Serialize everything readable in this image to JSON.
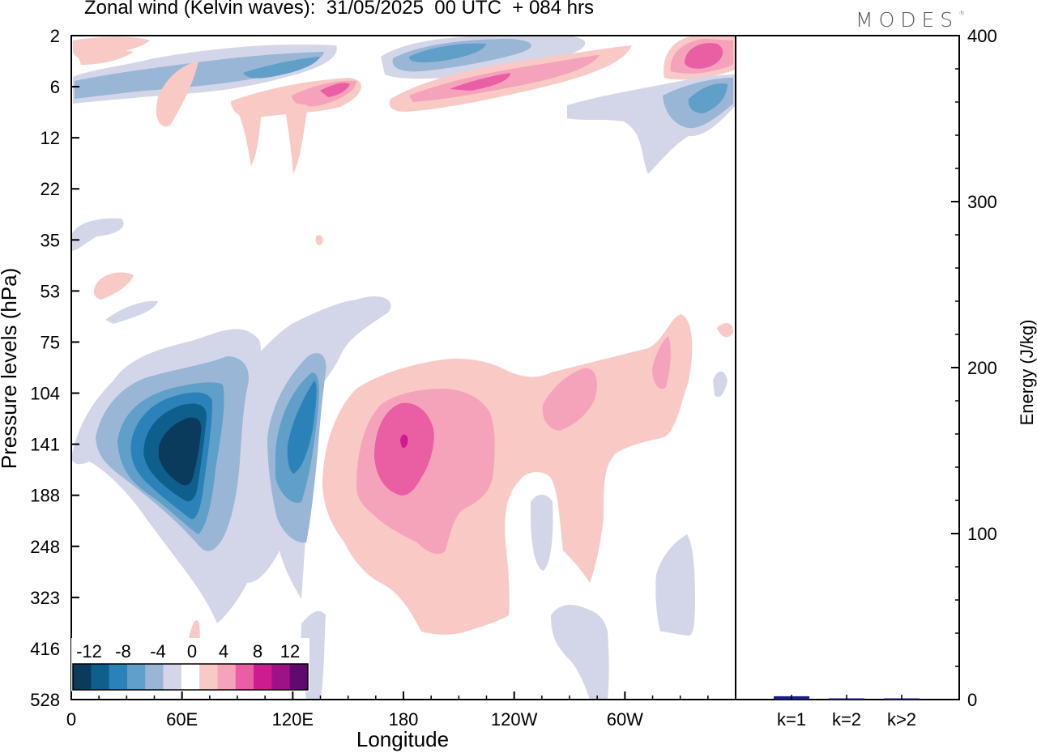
{
  "header": {
    "title": "Zonal wind (Kelvin waves):  31/05/2025  00 UTC  + 084 hrs",
    "brand": "MODES",
    "brand_mark": "®"
  },
  "colors": {
    "negative": [
      "#0b3b5c",
      "#0f5f8c",
      "#2a82b9",
      "#5f9fc8",
      "#9ab6d6",
      "#d3d6e8"
    ],
    "positive": [
      "#f9c9c5",
      "#f5a2bb",
      "#ea5ea4",
      "#cc1c8f",
      "#9e1288",
      "#5e0a6e"
    ],
    "energy_bar": "#1c1c86"
  },
  "chart_data": [
    {
      "type": "heatmap",
      "title": "Zonal wind (Kelvin waves):  31/05/2025  00 UTC  + 084 hrs",
      "xlabel": "Longitude",
      "ylabel": "Pressure levels (hPa)",
      "x_ticks": [
        "0",
        "60E",
        "120E",
        "180",
        "120W",
        "60W"
      ],
      "x_tick_values": [
        0,
        60,
        120,
        180,
        240,
        300
      ],
      "xlim": [
        0,
        360
      ],
      "y_ticks": [
        "2",
        "6",
        "12",
        "22",
        "35",
        "53",
        "75",
        "104",
        "141",
        "188",
        "248",
        "323",
        "416",
        "528"
      ],
      "y_scale": "pressure levels (top = 2 hPa, bottom = 528 hPa)",
      "colorbar": {
        "labels": [
          "-12",
          "-8",
          "-4",
          "0",
          "4",
          "8",
          "12"
        ],
        "levels": [
          -14,
          -12,
          -10,
          -8,
          -6,
          -4,
          -2,
          2,
          4,
          6,
          8,
          10,
          12,
          14
        ]
      },
      "features": [
        {
          "sign": "negative",
          "lon": 55,
          "level": "141",
          "peak": -14
        },
        {
          "sign": "negative",
          "lon": 117,
          "level": "141",
          "peak": -9
        },
        {
          "sign": "positive",
          "lon": 180,
          "level": "141",
          "peak": 11
        },
        {
          "sign": "positive",
          "lon": 205,
          "level": "6",
          "peak": 8
        },
        {
          "sign": "negative",
          "lon": 210,
          "level": "2",
          "peak": -7
        },
        {
          "sign": "negative",
          "lon": 345,
          "level": "6",
          "peak": -7
        },
        {
          "sign": "positive",
          "lon": 345,
          "level": "2",
          "peak": 8
        }
      ]
    },
    {
      "type": "bar",
      "ylabel": "Energy (J/kg)",
      "categories": [
        "k=1",
        "k=2",
        "k>2"
      ],
      "values": [
        2,
        0.5,
        0.5
      ],
      "ylim": [
        0,
        400
      ],
      "y_ticks": [
        "0",
        "100",
        "200",
        "300",
        "400"
      ]
    }
  ]
}
